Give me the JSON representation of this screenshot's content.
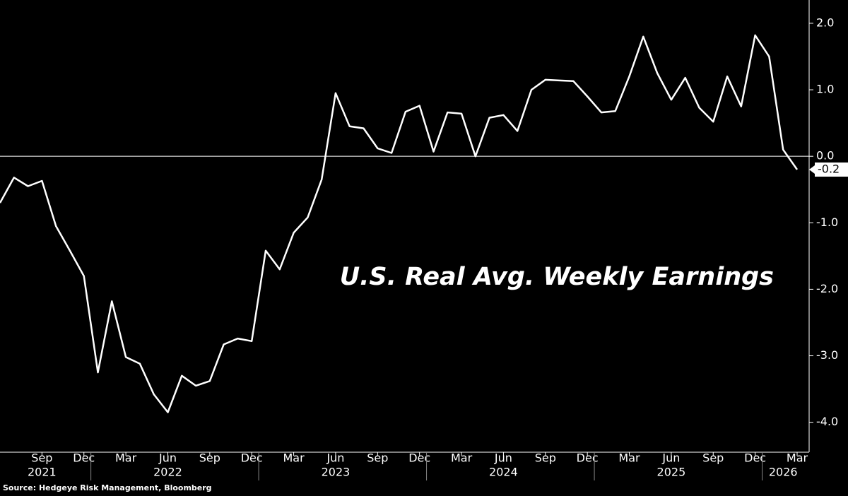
{
  "chart_data": {
    "type": "line",
    "annotation": "U.S. Real Avg. Weekly Earnings",
    "source": "Source: Hedgeye Risk Management, Bloomberg",
    "x": [
      "2021-06",
      "2021-07",
      "2021-08",
      "2021-09",
      "2021-10",
      "2021-11",
      "2021-12",
      "2022-01",
      "2022-02",
      "2022-03",
      "2022-04",
      "2022-05",
      "2022-06",
      "2022-07",
      "2022-08",
      "2022-09",
      "2022-10",
      "2022-11",
      "2022-12",
      "2023-01",
      "2023-02",
      "2023-03",
      "2023-04",
      "2023-05",
      "2023-06",
      "2023-07",
      "2023-08",
      "2023-09",
      "2023-10",
      "2023-11",
      "2023-12",
      "2024-01",
      "2024-02",
      "2024-03",
      "2024-04",
      "2024-05",
      "2024-06",
      "2024-07",
      "2024-08",
      "2024-09",
      "2024-10",
      "2024-11",
      "2024-12",
      "2025-01",
      "2025-02",
      "2025-03",
      "2025-04",
      "2025-05",
      "2025-06",
      "2025-07",
      "2025-08",
      "2025-09",
      "2025-10",
      "2025-11",
      "2025-12",
      "2026-01",
      "2026-02",
      "2026-03"
    ],
    "series": [
      {
        "color": "#ffffff",
        "values": [
          -0.7,
          -0.32,
          -0.45,
          -0.37,
          -1.05,
          -1.42,
          -1.8,
          -3.25,
          -2.18,
          -3.02,
          -3.12,
          -3.58,
          -3.85,
          -3.3,
          -3.45,
          -3.38,
          -2.83,
          -2.74,
          -2.78,
          -1.42,
          -1.7,
          -1.15,
          -0.92,
          -0.35,
          0.95,
          0.45,
          0.42,
          0.12,
          0.05,
          0.67,
          0.76,
          0.07,
          0.66,
          0.64,
          0.0,
          0.58,
          0.62,
          0.38,
          1.0,
          1.15,
          1.14,
          1.13,
          0.9,
          0.66,
          0.68,
          1.2,
          1.8,
          1.25,
          0.85,
          1.18,
          0.73,
          0.52,
          1.2,
          0.75,
          1.82,
          1.5,
          0.1,
          -0.2
        ]
      }
    ],
    "ylim": [
      -4.45,
      2.35
    ],
    "yticks": [
      {
        "value": 2,
        "label": "2.0"
      },
      {
        "value": 1,
        "label": "1.0"
      },
      {
        "value": 0,
        "label": "0.0"
      },
      {
        "value": -1,
        "label": "-1.0"
      },
      {
        "value": -2,
        "label": "-2.0"
      },
      {
        "value": -3,
        "label": "-3.0"
      },
      {
        "value": -4,
        "label": "-4.0"
      }
    ],
    "xticks": [
      {
        "value": "2021-09",
        "label": "Sep"
      },
      {
        "value": "2021-12",
        "label": "Dec"
      },
      {
        "value": "2022-03",
        "label": "Mar"
      },
      {
        "value": "2022-06",
        "label": "Jun"
      },
      {
        "value": "2022-09",
        "label": "Sep"
      },
      {
        "value": "2022-12",
        "label": "Dec"
      },
      {
        "value": "2023-03",
        "label": "Mar"
      },
      {
        "value": "2023-06",
        "label": "Jun"
      },
      {
        "value": "2023-09",
        "label": "Sep"
      },
      {
        "value": "2023-12",
        "label": "Dec"
      },
      {
        "value": "2024-03",
        "label": "Mar"
      },
      {
        "value": "2024-06",
        "label": "Jun"
      },
      {
        "value": "2024-09",
        "label": "Sep"
      },
      {
        "value": "2024-12",
        "label": "Dec"
      },
      {
        "value": "2025-03",
        "label": "Mar"
      },
      {
        "value": "2025-06",
        "label": "Jun"
      },
      {
        "value": "2025-09",
        "label": "Sep"
      },
      {
        "value": "2025-12",
        "label": "Dec"
      },
      {
        "value": "2026-03",
        "label": "Mar"
      }
    ],
    "year_labels": [
      {
        "value": "2021-09",
        "label": "2021"
      },
      {
        "value": "2022-06",
        "label": "2022"
      },
      {
        "value": "2023-06",
        "label": "2023"
      },
      {
        "value": "2024-06",
        "label": "2024"
      },
      {
        "value": "2025-06",
        "label": "2025"
      },
      {
        "value": "2026-02",
        "label": "2026"
      }
    ],
    "zero_line": true
  }
}
